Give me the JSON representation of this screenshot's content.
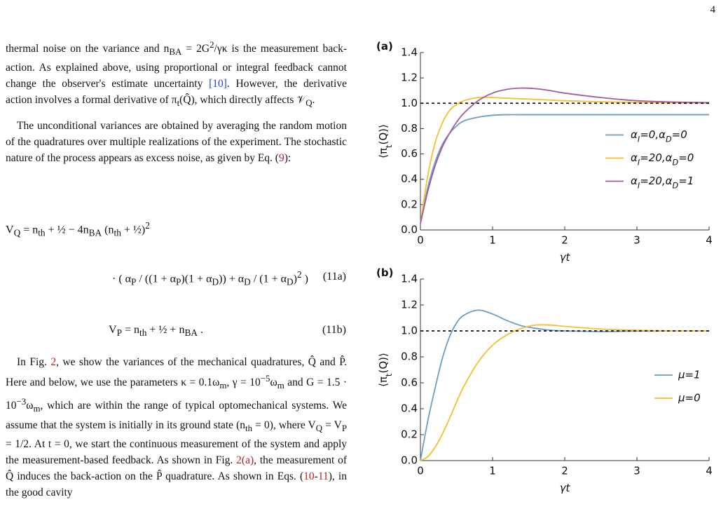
{
  "page_number": "4",
  "text": {
    "paragraphs": [
      {
        "segments": [
          "thermal noise on the variance and n_{BA} = 2G^{2}/γκ is the measurement back-action. As explained above, using proportional or integral feedback cannot change the observer's estimate uncertainty ",
          {
            "ref": "[10]"
          },
          ". However, the derivative action involves a formal derivative of π_{t}(Q̂), which directly affects 𝒱_{Q}."
        ]
      },
      {
        "segments": [
          "The unconditional variances are obtained by averaging the random motion of the quadratures over multiple realizations of the experiment. The stochastic nature of the process appears as excess noise, as given by Eq. (",
          {
            "ref": "9"
          },
          "):"
        ]
      },
      {
        "segments": [
          "In Fig. ",
          {
            "ref": "2"
          },
          ", we show the variances of the mechanical quadratures, Q̂ and P̂. Here and below, we use the parameters κ = 0.1ω_{m}, γ = 10^{−5}ω_{m} and G = 1.5 · 10^{−3}ω_{m}, which are within the range of typical optomechanical systems. We assume that the system is initially in its ground state (n_{th} = 0), where V_{Q} = V_{P} = 1/2. At t = 0, we start the continuous measurement of the system and apply the measurement-based feedback. As shown in Fig. ",
          {
            "ref": "2(a)"
          },
          ", the measurement of Q̂ induces the back-action on the P̂ quadrature. As shown in Eqs. (",
          {
            "ref": "10"
          },
          "-",
          {
            "ref": "11"
          },
          "), in the good cavity"
        ]
      }
    ],
    "equations": [
      {
        "lines": [
          "V_{Q} = n_{th} + ½ − 4n_{BA} (n_{th} + ½)^{2}",
          "· ( α_{P} / ((1 + α_{P})(1 + α_{D})) + α_{D} / (1 + α_{D})^{2} )"
        ],
        "label": "(11a)"
      },
      {
        "lines": [
          "V_{P} = n_{th} + ½ + n_{BA} ."
        ],
        "label": "(11b)"
      }
    ]
  },
  "chart_data": [
    {
      "type": "line",
      "panel_label": "(a)",
      "x_label": "γt",
      "y_label": "⟨π_{t}(Q)⟩",
      "x": [
        0,
        0.1,
        0.2,
        0.3,
        0.4,
        0.5,
        0.6,
        0.8,
        1.0,
        1.2,
        1.4,
        1.6,
        1.8,
        2.0,
        2.5,
        3.0,
        3.5,
        4.0
      ],
      "series": [
        {
          "name": "α_{I}=0,α_{D}=0",
          "color": "#6a9ec7",
          "values": [
            0.05,
            0.33,
            0.53,
            0.67,
            0.76,
            0.82,
            0.86,
            0.89,
            0.905,
            0.91,
            0.91,
            0.91,
            0.91,
            0.91,
            0.91,
            0.91,
            0.91,
            0.91
          ]
        },
        {
          "name": "α_{I}=20,α_{D}=0",
          "color": "#f2c12e",
          "values": [
            0.05,
            0.42,
            0.68,
            0.84,
            0.94,
            0.99,
            1.02,
            1.045,
            1.045,
            1.04,
            1.035,
            1.03,
            1.025,
            1.02,
            1.012,
            1.006,
            1.003,
            1.001
          ]
        },
        {
          "name": "α_{I}=20,α_{D}=1",
          "color": "#a35ba0",
          "values": [
            0.05,
            0.3,
            0.5,
            0.65,
            0.76,
            0.85,
            0.92,
            1.02,
            1.08,
            1.11,
            1.12,
            1.115,
            1.1,
            1.08,
            1.045,
            1.02,
            1.01,
            1.005
          ]
        }
      ],
      "xlim": [
        0,
        4
      ],
      "xticks": [
        0,
        1,
        2,
        3,
        4
      ],
      "ylim": [
        0,
        1.4
      ],
      "yticks": [
        {
          "value": 0,
          "label": "0.0"
        },
        0.2,
        0.4,
        0.6,
        0.8,
        {
          "value": 1,
          "label": "1.0"
        },
        1.2,
        1.4
      ],
      "reference_line": 1,
      "legend": "right"
    },
    {
      "type": "line",
      "panel_label": "(b)",
      "x_label": "γt",
      "y_label": "⟨π_{t}(Q)⟩",
      "x": [
        0,
        0.1,
        0.2,
        0.3,
        0.4,
        0.5,
        0.6,
        0.8,
        1.0,
        1.2,
        1.4,
        1.6,
        1.8,
        2.0,
        2.5,
        3.0,
        3.5,
        4.0
      ],
      "series": [
        {
          "name": "μ=1",
          "color": "#6a9ec7",
          "values": [
            0,
            0.3,
            0.55,
            0.78,
            0.95,
            1.06,
            1.12,
            1.16,
            1.13,
            1.08,
            1.04,
            1.02,
            1.005,
            1.0,
            0.995,
            0.999,
            1.0,
            1.0
          ]
        },
        {
          "name": "μ=0",
          "color": "#f2c12e",
          "values": [
            0,
            0.03,
            0.1,
            0.2,
            0.32,
            0.45,
            0.57,
            0.76,
            0.89,
            0.97,
            1.02,
            1.045,
            1.045,
            1.035,
            1.015,
            1.005,
            1.0,
            1.0
          ]
        }
      ],
      "xlim": [
        0,
        4
      ],
      "xticks": [
        0,
        1,
        2,
        3,
        4
      ],
      "ylim": [
        0,
        1.4
      ],
      "yticks": [
        {
          "value": 0,
          "label": "0.0"
        },
        0.2,
        0.4,
        0.6,
        0.8,
        {
          "value": 1,
          "label": "1.0"
        },
        1.2,
        1.4
      ],
      "reference_line": 1,
      "legend": "right"
    }
  ]
}
